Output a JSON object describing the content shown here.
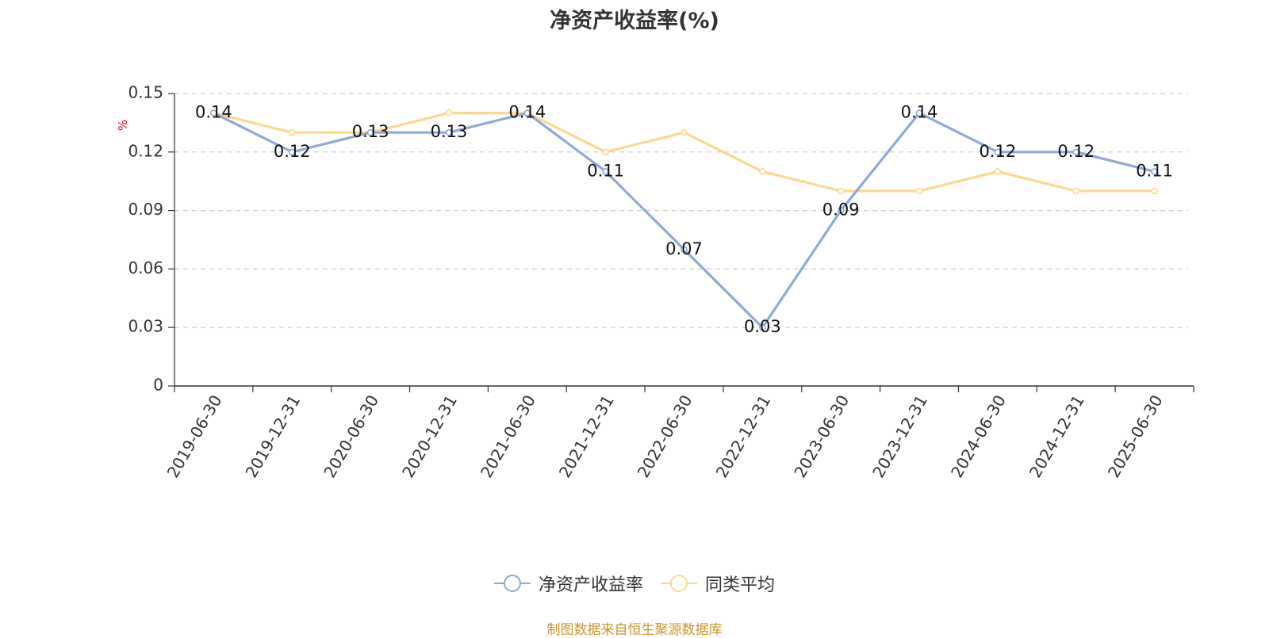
{
  "chart_data": {
    "type": "line",
    "title": "净资产收益率(%)",
    "ylabel": "%",
    "categories": [
      "2019-06-30",
      "2019-12-31",
      "2020-06-30",
      "2020-12-31",
      "2021-06-30",
      "2021-12-31",
      "2022-06-30",
      "2022-12-31",
      "2023-06-30",
      "2023-12-31",
      "2024-06-30",
      "2024-12-31",
      "2025-06-30"
    ],
    "ylim": [
      0,
      0.15
    ],
    "yticks": [
      "0",
      "0.03",
      "0.06",
      "0.09",
      "0.12",
      "0.15"
    ],
    "grid": true,
    "legend_position": "bottom",
    "series": [
      {
        "name": "净资产收益率",
        "color": "#8eaad6",
        "show_labels": true,
        "values": [
          0.14,
          0.12,
          0.13,
          0.13,
          0.14,
          0.11,
          0.07,
          0.03,
          0.09,
          0.14,
          0.12,
          0.12,
          0.11
        ],
        "labels": [
          "0.14",
          "0.12",
          "0.13",
          "0.13",
          "0.14",
          "0.11",
          "0.07",
          "0.03",
          "0.09",
          "0.14",
          "0.12",
          "0.12",
          "0.11"
        ]
      },
      {
        "name": "同类平均",
        "color": "#fbd88e",
        "show_labels": false,
        "values": [
          0.14,
          0.13,
          0.13,
          0.14,
          0.14,
          0.12,
          0.13,
          0.11,
          0.1,
          0.1,
          0.11,
          0.1,
          0.1
        ]
      }
    ]
  },
  "source_text": "制图数据来自恒生聚源数据库"
}
